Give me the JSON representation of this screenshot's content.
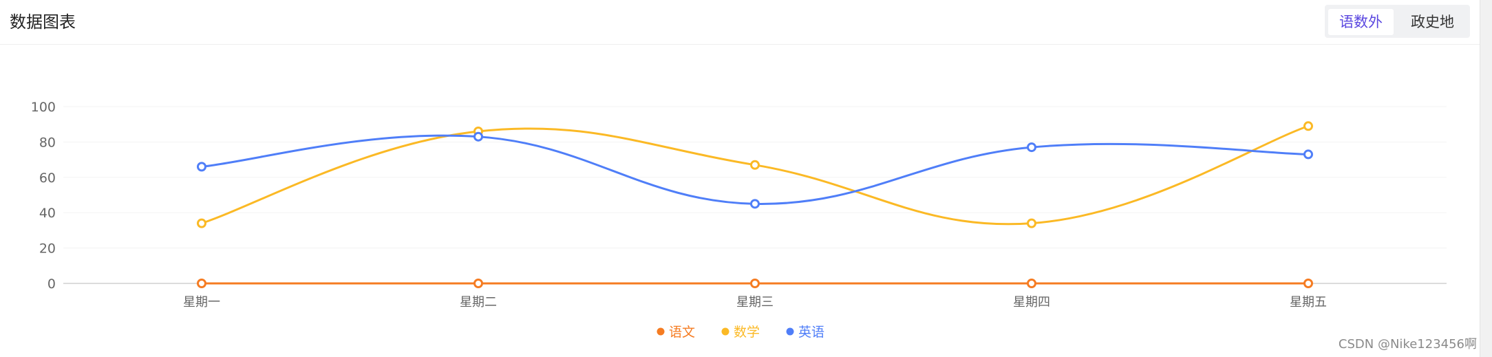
{
  "header": {
    "title": "数据图表",
    "tabs": [
      {
        "label": "语数外",
        "active": true
      },
      {
        "label": "政史地",
        "active": false
      }
    ],
    "active_color": "#5a47e0"
  },
  "chart_data": {
    "type": "line",
    "smooth": true,
    "categories": [
      "星期一",
      "星期二",
      "星期三",
      "星期四",
      "星期五"
    ],
    "series": [
      {
        "name": "语文",
        "color": "#f57c22",
        "values": [
          0,
          0,
          0,
          0,
          0
        ]
      },
      {
        "name": "数学",
        "color": "#fbb925",
        "values": [
          34,
          86,
          67,
          34,
          89
        ]
      },
      {
        "name": "英语",
        "color": "#4f7ef8",
        "values": [
          66,
          83,
          45,
          77,
          73
        ]
      }
    ],
    "ylim": [
      0,
      100
    ],
    "yticks": [
      0,
      20,
      40,
      60,
      80,
      100
    ],
    "grid": true,
    "legend_position": "bottom-center"
  },
  "watermark": "CSDN @Nike123456啊"
}
